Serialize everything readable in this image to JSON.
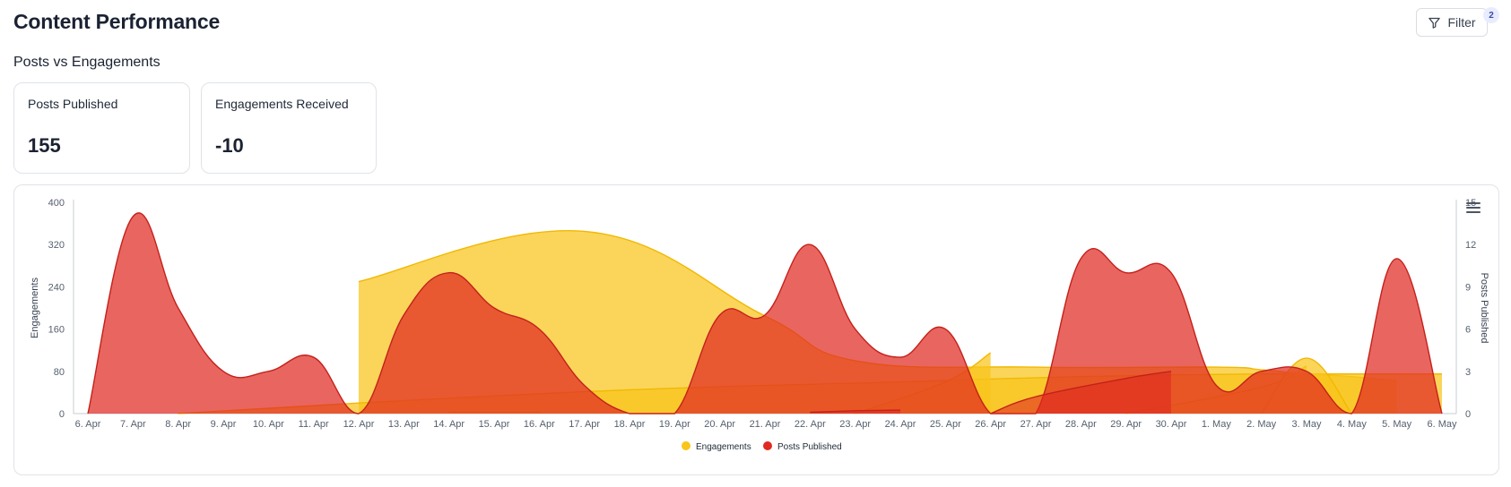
{
  "header": {
    "title": "Content Performance",
    "filter_label": "Filter",
    "filter_count": "2"
  },
  "section_title": "Posts vs Engagements",
  "stats": {
    "posts_label": "Posts Published",
    "posts_value": "155",
    "engagements_label": "Engagements Received",
    "engagements_value": "-10"
  },
  "colors": {
    "engagements": "#f8c51a",
    "posts": "#e02a22"
  },
  "icons": {
    "filter": "filter-icon",
    "menu": "hamburger-menu-icon"
  },
  "chart_data": {
    "type": "area",
    "categories": [
      "6. Apr",
      "7. Apr",
      "8. Apr",
      "9. Apr",
      "10. Apr",
      "11. Apr",
      "12. Apr",
      "13. Apr",
      "14. Apr",
      "15. Apr",
      "16. Apr",
      "17. Apr",
      "18. Apr",
      "19. Apr",
      "20. Apr",
      "21. Apr",
      "22. Apr",
      "23. Apr",
      "24. Apr",
      "25. Apr",
      "26. Apr",
      "27. Apr",
      "28. Apr",
      "29. Apr",
      "30. Apr",
      "1. May",
      "2. May",
      "3. May",
      "4. May",
      "5. May",
      "6. May"
    ],
    "ylabel": "Engagements",
    "y2label": "Posts Published",
    "ylim": [
      0,
      400
    ],
    "y2lim": [
      0,
      15
    ],
    "yticks": [
      0,
      80,
      160,
      240,
      320,
      400
    ],
    "y2ticks": [
      0,
      3,
      6,
      9,
      12,
      15
    ],
    "legend_position": "bottom-center",
    "series": [
      {
        "name": "Engagements",
        "axis": "left",
        "segments": [
          [
            [
              6,
              250
            ],
            [
              11,
              345
            ],
            [
              15,
              185
            ],
            [
              17,
              100
            ],
            [
              21,
              88
            ],
            [
              25,
              88
            ],
            [
              26,
              83
            ],
            [
              27,
              75
            ],
            [
              28,
              70
            ],
            [
              29,
              62
            ]
          ],
          [
            [
              2,
              0
            ],
            [
              6,
              20
            ],
            [
              12,
              45
            ],
            [
              18,
              60
            ],
            [
              22,
              70
            ],
            [
              26,
              75
            ],
            [
              30,
              75
            ]
          ],
          [
            [
              17,
              0
            ],
            [
              19,
              60
            ],
            [
              20,
              115
            ]
          ],
          [
            [
              23,
              0
            ],
            [
              26,
              50
            ],
            [
              27,
              90
            ]
          ],
          [
            [
              26,
              0
            ],
            [
              27,
              105
            ],
            [
              28,
              0
            ]
          ],
          [
            [
              8,
              3
            ],
            [
              10,
              3
            ]
          ]
        ]
      },
      {
        "name": "Posts Published",
        "axis": "right",
        "values": [
          0,
          14,
          7.5,
          3,
          3,
          4,
          0,
          7,
          10,
          7.5,
          6,
          2,
          0,
          0,
          7,
          7,
          12,
          6,
          4,
          6,
          0,
          0,
          11,
          10,
          10,
          2,
          3,
          3,
          0,
          11,
          0
        ],
        "extra_segments": [
          [
            [
              20,
              0
            ],
            [
              21,
              1.2
            ],
            [
              23,
              2.5
            ],
            [
              24,
              3
            ]
          ],
          [
            [
              16,
              0.1
            ],
            [
              17,
              0.2
            ],
            [
              18,
              0.25
            ]
          ]
        ]
      }
    ]
  }
}
